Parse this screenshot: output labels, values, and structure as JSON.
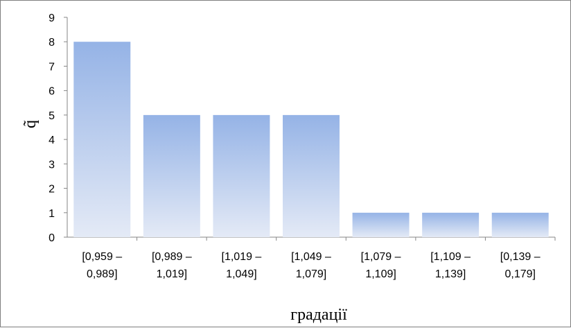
{
  "chart_data": {
    "type": "bar",
    "title": "",
    "xlabel": "градації",
    "ylabel": "q̃",
    "ylim": [
      0,
      9
    ],
    "yticks": [
      "0",
      "1",
      "2",
      "3",
      "4",
      "5",
      "6",
      "7",
      "8",
      "9"
    ],
    "grid": false,
    "legend": "none",
    "categories": [
      [
        "[0,959 –",
        "0,989]"
      ],
      [
        "[0,989 –",
        "1,019]"
      ],
      [
        "[1,019 –",
        "1,049]"
      ],
      [
        "[1,049 –",
        "1,079]"
      ],
      [
        "[1,079 –",
        "1,109]"
      ],
      [
        "[1,109 –",
        "1,139]"
      ],
      [
        "[0,139 –",
        "0,179]"
      ]
    ],
    "values": [
      8,
      5,
      5,
      5,
      1,
      1,
      1
    ],
    "colors": {
      "bar_top": "#95b3e6",
      "bar_bottom": "#e4eaf6",
      "axis": "#868686",
      "border": "#7f7f7f"
    }
  }
}
